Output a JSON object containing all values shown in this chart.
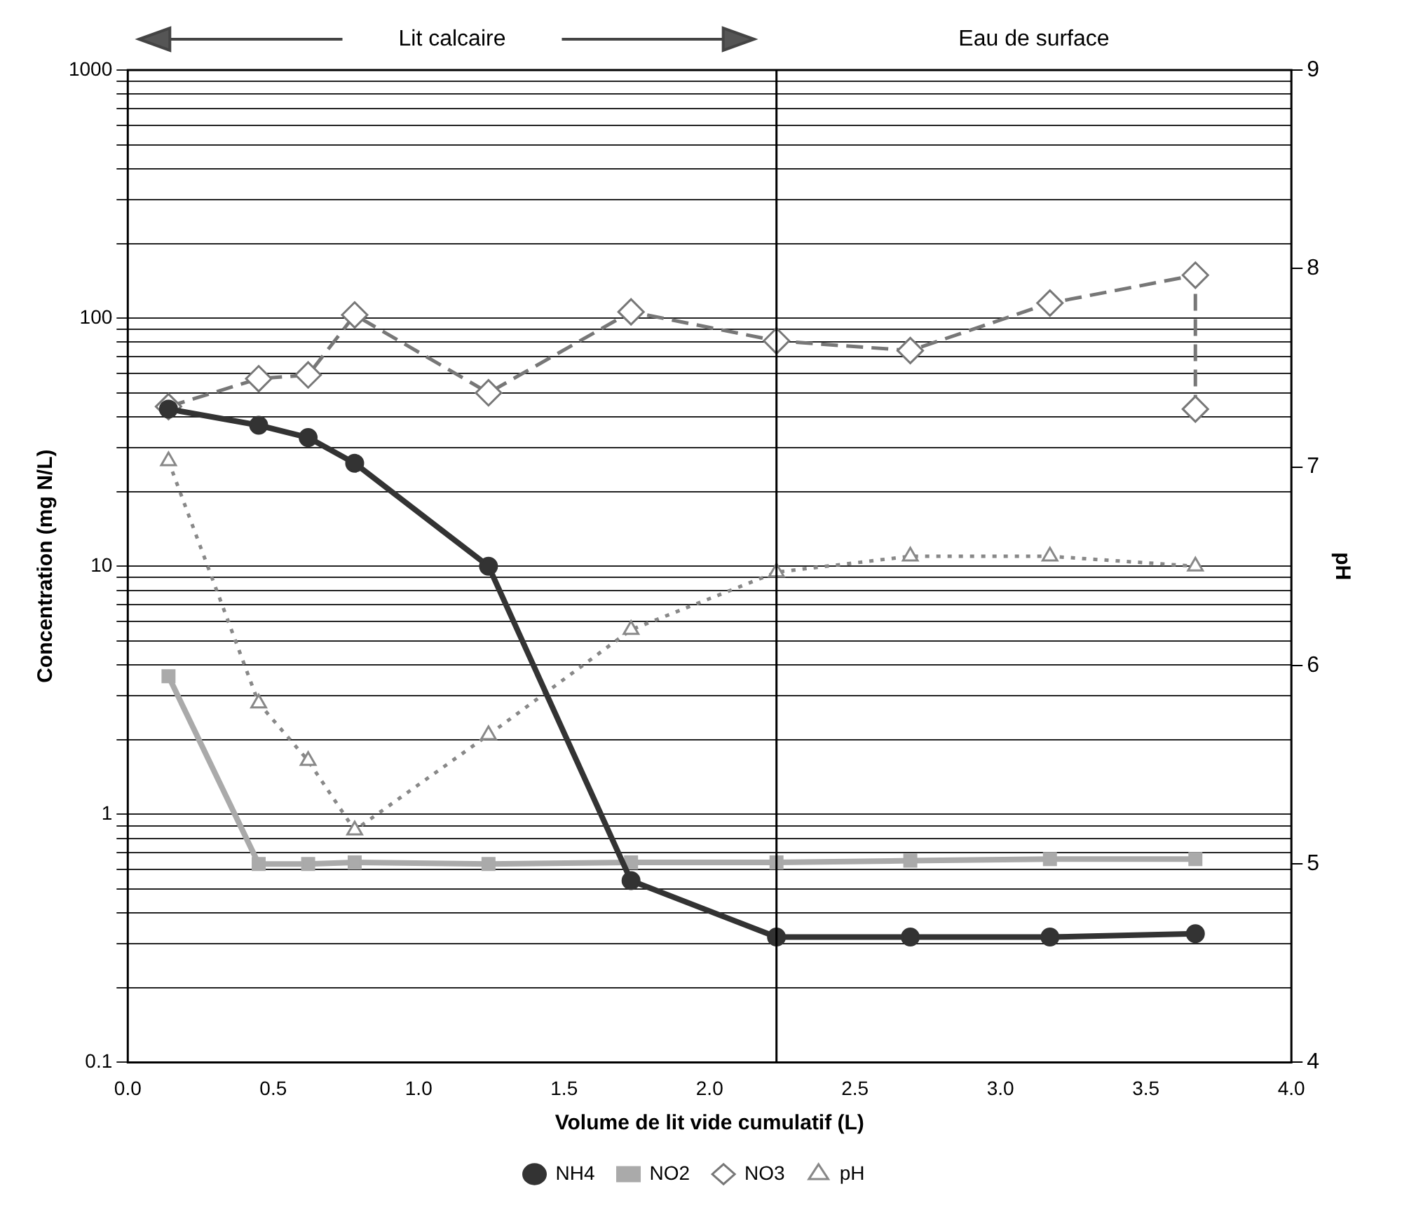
{
  "chart_data": {
    "type": "line",
    "xlabel": "Volume de lit vide cumulatif (L)",
    "ylabel": "Concentration (mg N/L)",
    "y2label": "pH",
    "x": [
      0.14,
      0.45,
      0.62,
      0.78,
      1.24,
      1.73,
      2.23,
      2.69,
      3.17,
      3.67
    ],
    "series": [
      {
        "name": "NH4",
        "color": "#333333",
        "marker": "circle",
        "line_style": "solid",
        "values": [
          43,
          37,
          33,
          26,
          10,
          0.54,
          0.32,
          0.32,
          0.32,
          0.33
        ]
      },
      {
        "name": "NO2",
        "color": "#aaaaaa",
        "marker": "square",
        "line_style": "solid",
        "values": [
          3.6,
          0.63,
          0.63,
          0.64,
          0.63,
          0.64,
          0.64,
          0.65,
          0.66,
          0.66
        ]
      },
      {
        "name": "NO3",
        "color": "#777777",
        "marker": "diamond",
        "line_style": "dashed",
        "x": [
          0.14,
          0.45,
          0.62,
          0.78,
          1.24,
          1.73,
          2.23,
          2.69,
          3.17,
          3.67,
          3.67
        ],
        "values": [
          44,
          57,
          59,
          103,
          50,
          106,
          81,
          74,
          115,
          149,
          43
        ]
      },
      {
        "name": "pH",
        "color": "#888888",
        "marker": "triangle",
        "line_style": "dotted",
        "axis": "y2",
        "values": [
          7.03,
          5.81,
          5.52,
          5.17,
          5.65,
          6.18,
          6.47,
          6.55,
          6.55,
          6.5
        ]
      }
    ],
    "xlim": [
      0,
      4
    ],
    "xticks": [
      {
        "value": 0,
        "label": "0.0"
      },
      {
        "value": 0.5,
        "label": "0.5"
      },
      {
        "value": 1,
        "label": "1.0"
      },
      {
        "value": 1.5,
        "label": "1.5"
      },
      {
        "value": 2,
        "label": "2.0"
      },
      {
        "value": 2.5,
        "label": "2.5"
      },
      {
        "value": 3,
        "label": "3.0"
      },
      {
        "value": 3.5,
        "label": "3.5"
      },
      {
        "value": 4,
        "label": "4.0"
      }
    ],
    "log": "y",
    "ylim": [
      0.1,
      1000
    ],
    "yticks": [
      0.1,
      {
        "value": 0.2,
        "label": null
      },
      {
        "value": 0.3,
        "label": null
      },
      {
        "value": 0.4,
        "label": null
      },
      {
        "value": 0.5,
        "label": null
      },
      {
        "value": 0.6,
        "label": null
      },
      {
        "value": 0.7,
        "label": null
      },
      {
        "value": 0.8,
        "label": null
      },
      {
        "value": 0.9,
        "label": null
      },
      1,
      {
        "value": 2,
        "label": null
      },
      {
        "value": 3,
        "label": null
      },
      {
        "value": 4,
        "label": null
      },
      {
        "value": 5,
        "label": null
      },
      {
        "value": 6,
        "label": null
      },
      {
        "value": 7,
        "label": null
      },
      {
        "value": 8,
        "label": null
      },
      {
        "value": 9,
        "label": null
      },
      10,
      {
        "value": 20,
        "label": null
      },
      {
        "value": 30,
        "label": null
      },
      {
        "value": 40,
        "label": null
      },
      {
        "value": 50,
        "label": null
      },
      {
        "value": 60,
        "label": null
      },
      {
        "value": 70,
        "label": null
      },
      {
        "value": 80,
        "label": null
      },
      {
        "value": 90,
        "label": null
      },
      100,
      {
        "value": 200,
        "label": null
      },
      {
        "value": 300,
        "label": null
      },
      {
        "value": 400,
        "label": null
      },
      {
        "value": 500,
        "label": null
      },
      {
        "value": 600,
        "label": null
      },
      {
        "value": 700,
        "label": null
      },
      {
        "value": 800,
        "label": null
      },
      {
        "value": 900,
        "label": null
      },
      1000
    ],
    "y2lim": [
      4,
      9
    ],
    "y2ticks": [
      4,
      5,
      6,
      7,
      8,
      9
    ],
    "grid": "y",
    "legend": "bottom",
    "ref_lines": [
      {
        "axis": "x",
        "value": 2.23,
        "color": "#000000"
      }
    ],
    "annotations": [
      "Lit calcaire",
      "Eau de surface"
    ]
  }
}
